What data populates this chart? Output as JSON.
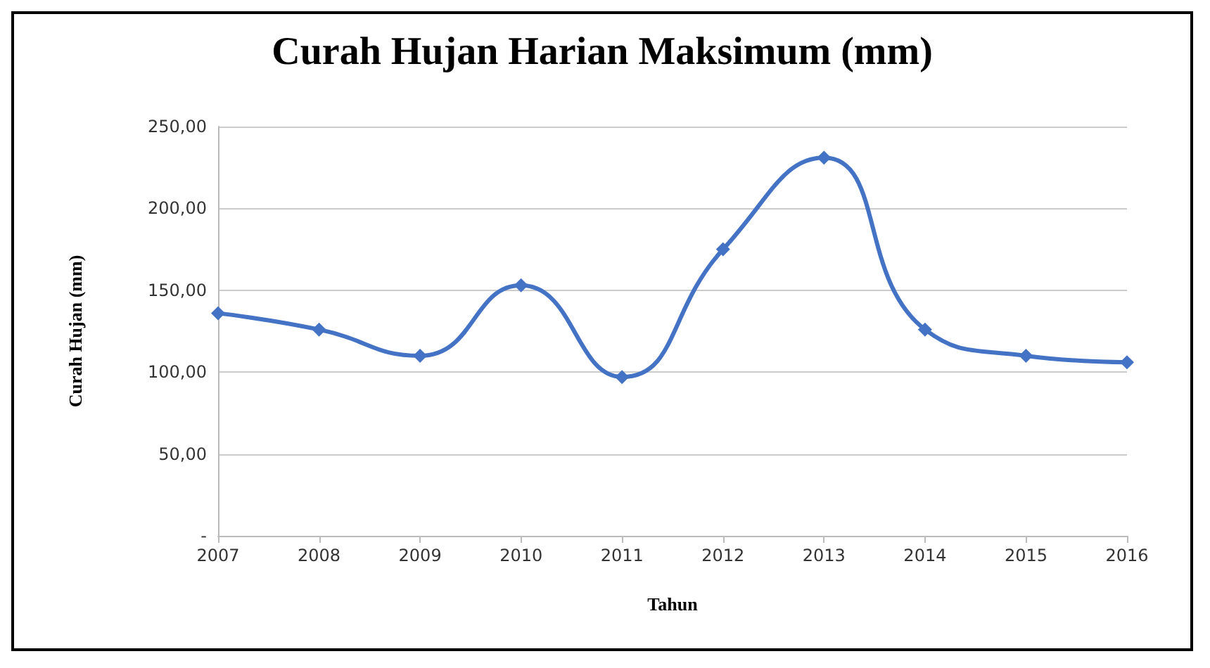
{
  "chart_data": {
    "type": "line",
    "title": "Curah Hujan Harian Maksimum (mm)",
    "xlabel": "Tahun",
    "ylabel": "Curah Hujan (mm)",
    "categories": [
      "2007",
      "2008",
      "2009",
      "2010",
      "2011",
      "2012",
      "2013",
      "2014",
      "2015",
      "2016"
    ],
    "series": [
      {
        "color": "#4472c4",
        "values": [
          136,
          126,
          110,
          153,
          97,
          175,
          231,
          126,
          110,
          106
        ]
      }
    ],
    "ylim": [
      0,
      250
    ],
    "yticks": [
      {
        "value": 0,
        "label": "-"
      },
      {
        "value": 50,
        "label": "50,00"
      },
      {
        "value": 100,
        "label": "100,00"
      },
      {
        "value": 150,
        "label": "150,00"
      },
      {
        "value": 200,
        "label": "200,00"
      },
      {
        "value": 250,
        "label": "250,00"
      }
    ],
    "grid": "y",
    "marker": "diamond",
    "line_style": "solid"
  }
}
